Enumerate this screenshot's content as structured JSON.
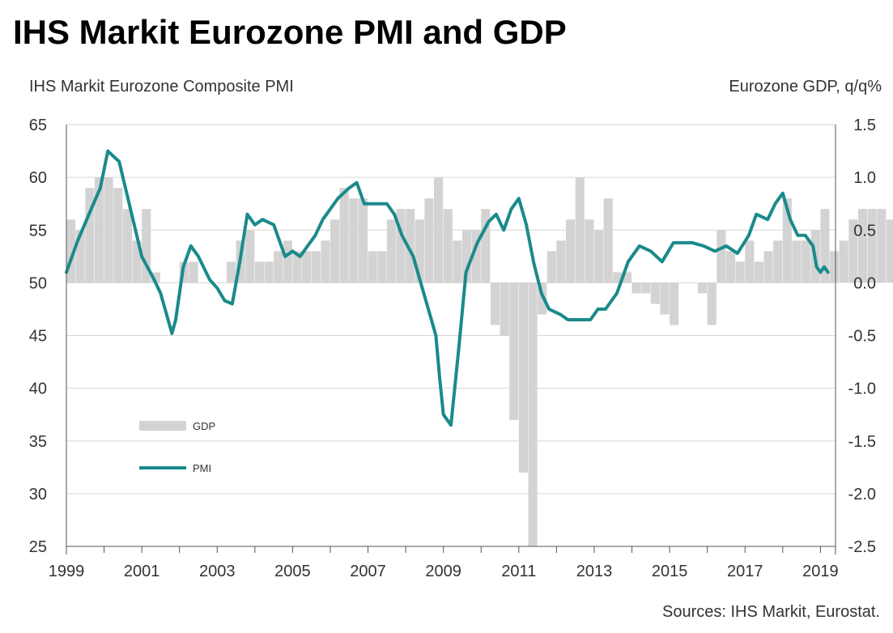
{
  "title": "IHS Markit Eurozone PMI and GDP",
  "source": "Sources: IHS Markit, Eurostat.",
  "colors": {
    "pmi": "#1a8a8a",
    "gdp": "#d3d3d3",
    "grid": "#d6d6d6",
    "axis": "#555555",
    "text": "#333333"
  },
  "chart_data": {
    "type": "bar+line",
    "title": "IHS Markit Eurozone PMI and GDP",
    "y_left_label": "IHS Markit Eurozone Composite PMI",
    "y_right_label": "Eurozone GDP, q/q%",
    "y_left_range": [
      25,
      65
    ],
    "y_left_ticks": [
      "65",
      "60",
      "55",
      "50",
      "45",
      "40",
      "35",
      "30",
      "25"
    ],
    "y_right_range": [
      -2.5,
      1.5
    ],
    "y_right_ticks": [
      "1.5",
      "1.0",
      "0.5",
      "0.0",
      "-0.5",
      "-1.0",
      "-1.5",
      "-2.0",
      "-2.5"
    ],
    "x_range": [
      1999.0,
      2019.4
    ],
    "x_ticks": [
      "1999",
      "2001",
      "2003",
      "2005",
      "2007",
      "2009",
      "2011",
      "2013",
      "2015",
      "2017",
      "2019"
    ],
    "grid": true,
    "legend_position": "left-middle",
    "series": [
      {
        "name": "GDP",
        "kind": "bar",
        "axis": "right",
        "quarter_start": 1999.0,
        "values": [
          0.6,
          0.5,
          0.9,
          1.0,
          1.0,
          0.9,
          0.7,
          0.4,
          0.7,
          0.1,
          0.0,
          0.0,
          0.2,
          0.2,
          0.0,
          0.0,
          0.0,
          0.2,
          0.4,
          0.5,
          0.2,
          0.2,
          0.3,
          0.4,
          0.3,
          0.3,
          0.3,
          0.4,
          0.6,
          0.9,
          0.8,
          0.8,
          0.3,
          0.3,
          0.6,
          0.7,
          0.7,
          0.6,
          0.8,
          1.0,
          0.7,
          0.4,
          0.5,
          0.5,
          0.7,
          -0.4,
          -0.5,
          -1.3,
          -1.8,
          -2.7,
          -0.3,
          0.3,
          0.4,
          0.6,
          1.0,
          0.6,
          0.5,
          0.8,
          0.1,
          0.1,
          -0.1,
          -0.1,
          -0.2,
          -0.3,
          -0.4,
          0.0,
          0.0,
          -0.1,
          -0.4,
          0.5,
          0.3,
          0.2,
          0.4,
          0.2,
          0.3,
          0.4,
          0.8,
          0.4,
          0.4,
          0.5,
          0.7,
          0.3,
          0.4,
          0.6,
          0.7,
          0.7,
          0.7,
          0.6,
          0.4,
          0.4,
          0.2,
          0.2,
          0.4
        ]
      },
      {
        "name": "PMI",
        "kind": "line",
        "axis": "left",
        "x": [
          1999.0,
          1999.3,
          1999.6,
          1999.9,
          2000.1,
          2000.4,
          2000.6,
          2000.8,
          2001.0,
          2001.3,
          2001.5,
          2001.8,
          2001.9,
          2002.1,
          2002.3,
          2002.5,
          2002.8,
          2003.0,
          2003.2,
          2003.4,
          2003.6,
          2003.8,
          2004.0,
          2004.2,
          2004.5,
          2004.8,
          2005.0,
          2005.2,
          2005.4,
          2005.6,
          2005.8,
          2006.0,
          2006.2,
          2006.5,
          2006.7,
          2006.9,
          2007.2,
          2007.5,
          2007.7,
          2007.9,
          2008.2,
          2008.4,
          2008.6,
          2008.8,
          2008.9,
          2009.0,
          2009.2,
          2009.4,
          2009.6,
          2009.9,
          2010.2,
          2010.4,
          2010.6,
          2010.8,
          2011.0,
          2011.2,
          2011.4,
          2011.6,
          2011.8,
          2012.1,
          2012.3,
          2012.6,
          2012.9,
          2013.1,
          2013.3,
          2013.6,
          2013.9,
          2014.2,
          2014.5,
          2014.8,
          2015.1,
          2015.4,
          2015.6,
          2015.9,
          2016.2,
          2016.5,
          2016.8,
          2017.1,
          2017.3,
          2017.6,
          2017.8,
          2018.0,
          2018.2,
          2018.4,
          2018.6,
          2018.8,
          2018.9,
          2019.0,
          2019.1,
          2019.2
        ],
        "values": [
          51.0,
          54.0,
          56.5,
          59.0,
          62.5,
          61.5,
          58.5,
          55.5,
          52.5,
          50.5,
          49.0,
          45.2,
          46.5,
          51.5,
          53.5,
          52.5,
          50.3,
          49.5,
          48.3,
          48.0,
          52.0,
          56.5,
          55.5,
          56.0,
          55.5,
          52.5,
          53.0,
          52.5,
          53.5,
          54.5,
          56.0,
          57.0,
          58.0,
          59.0,
          59.5,
          57.5,
          57.5,
          57.5,
          56.5,
          54.5,
          52.5,
          50.0,
          47.5,
          45.0,
          41.0,
          37.5,
          36.5,
          43.5,
          51.0,
          53.8,
          55.8,
          56.5,
          55.0,
          57.0,
          58.0,
          55.5,
          51.8,
          49.0,
          47.5,
          47.0,
          46.5,
          46.5,
          46.5,
          47.5,
          47.5,
          49.0,
          52.0,
          53.5,
          53.0,
          52.0,
          53.8,
          53.8,
          53.8,
          53.5,
          53.0,
          53.5,
          52.8,
          54.5,
          56.5,
          56.0,
          57.5,
          58.5,
          56.0,
          54.5,
          54.5,
          53.5,
          51.5,
          51.0,
          51.5,
          51.0
        ]
      }
    ]
  }
}
